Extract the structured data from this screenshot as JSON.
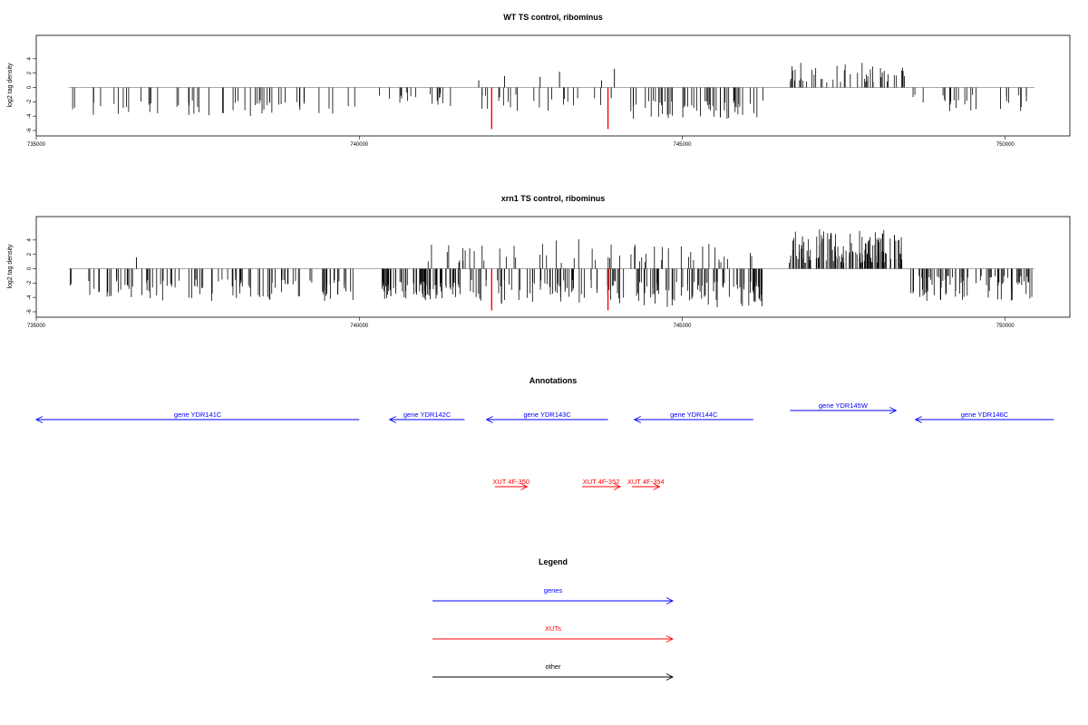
{
  "chart_data": [
    {
      "type": "bar",
      "title": "WT TS control, ribominus",
      "xlabel": "",
      "ylabel": "log2 tag density",
      "xlim": [
        735000,
        751000
      ],
      "ylim": [
        -6,
        6
      ],
      "x_ticks": [
        "735000",
        "740000",
        "745000",
        "750000"
      ],
      "y_ticks": [
        "-6",
        "-4",
        "-2",
        "0",
        "2",
        "4"
      ],
      "baseline": 0,
      "bar_color": "#000000",
      "highlight_color": "#ff0000",
      "segments": [
        {
          "from": 735500,
          "to": 739950,
          "sign": -1,
          "density": 55,
          "min": 1.8,
          "max": 4.0
        },
        {
          "from": 740300,
          "to": 741700,
          "sign": -1,
          "density": 18,
          "min": 0.7,
          "max": 2.6
        },
        {
          "from": 741700,
          "to": 743800,
          "sign": -1,
          "density": 22,
          "min": 1.0,
          "max": 3.3
        },
        {
          "from": 744150,
          "to": 746300,
          "sign": -1,
          "density": 55,
          "min": 1.8,
          "max": 4.4
        },
        {
          "from": 746650,
          "to": 748450,
          "sign": 1,
          "density": 45,
          "min": 0.7,
          "max": 3.5
        },
        {
          "from": 748450,
          "to": 750400,
          "sign": -1,
          "density": 26,
          "min": 1.0,
          "max": 3.4
        }
      ],
      "extra_bars": [
        {
          "x": 741850,
          "y": 1.0
        },
        {
          "x": 742250,
          "y": 1.6
        },
        {
          "x": 742800,
          "y": 1.5
        },
        {
          "x": 743100,
          "y": 2.2
        },
        {
          "x": 743750,
          "y": 1.0
        },
        {
          "x": 743950,
          "y": 2.6
        },
        {
          "x": 742050,
          "y": -1.2
        },
        {
          "x": 743900,
          "y": -1.5
        }
      ],
      "highlight_bars": [
        {
          "x": 742050,
          "y": -5.8
        },
        {
          "x": 743850,
          "y": -5.8
        }
      ]
    },
    {
      "type": "bar",
      "title": "xrn1 TS control, ribominus",
      "xlabel": "",
      "ylabel": "log2 tag density",
      "xlim": [
        735000,
        751000
      ],
      "ylim": [
        -6,
        6
      ],
      "x_ticks": [
        "735000",
        "740000",
        "745000",
        "750000"
      ],
      "y_ticks": [
        "-6",
        "-4",
        "-2",
        "0",
        "2",
        "4"
      ],
      "baseline": 0,
      "bar_color": "#000000",
      "highlight_color": "#ff0000",
      "segments": [
        {
          "from": 735500,
          "to": 739950,
          "sign": -1,
          "density": 110,
          "min": 1.5,
          "max": 4.5
        },
        {
          "from": 740350,
          "to": 741600,
          "sign": -1,
          "density": 80,
          "min": 1.8,
          "max": 4.5
        },
        {
          "from": 741000,
          "to": 744100,
          "sign": 1,
          "density": 30,
          "min": 0.8,
          "max": 4.3
        },
        {
          "from": 741700,
          "to": 744100,
          "sign": -1,
          "density": 70,
          "min": 1.5,
          "max": 5.0
        },
        {
          "from": 744200,
          "to": 746250,
          "sign": 1,
          "density": 25,
          "min": 0.8,
          "max": 3.6
        },
        {
          "from": 744250,
          "to": 746300,
          "sign": -1,
          "density": 85,
          "min": 1.8,
          "max": 5.5
        },
        {
          "from": 746650,
          "to": 748400,
          "sign": 1,
          "density": 130,
          "min": 0.8,
          "max": 5.5
        },
        {
          "from": 748450,
          "to": 750450,
          "sign": -1,
          "density": 80,
          "min": 1.0,
          "max": 4.5
        }
      ],
      "extra_bars": [
        {
          "x": 736550,
          "y": 1.6
        }
      ],
      "highlight_bars": [
        {
          "x": 742050,
          "y": -5.8
        },
        {
          "x": 743850,
          "y": -5.8
        }
      ]
    }
  ],
  "annotations": {
    "title": "Annotations",
    "genes_color": "#0000ff",
    "xuts_color": "#ff0000",
    "genes": [
      {
        "label": "gene YDR141C",
        "from": 740000,
        "to": 735000,
        "row": 1
      },
      {
        "label": "gene YDR142C",
        "from": 741630,
        "to": 740470,
        "row": 1
      },
      {
        "label": "gene YDR143C",
        "from": 743850,
        "to": 741970,
        "row": 1
      },
      {
        "label": "gene YDR144C",
        "from": 746100,
        "to": 744260,
        "row": 1
      },
      {
        "label": "gene YDR145W",
        "from": 746670,
        "to": 748310,
        "row": 0
      },
      {
        "label": "gene YDR146C",
        "from": 750750,
        "to": 748610,
        "row": 1
      }
    ],
    "xuts": [
      {
        "label": "XUT 4F-350",
        "from": 742100,
        "to": 742600
      },
      {
        "label": "XUT 4F-352",
        "from": 743450,
        "to": 744040
      },
      {
        "label": "XUT 4F-354",
        "from": 744220,
        "to": 744650
      }
    ]
  },
  "legend": {
    "title": "Legend",
    "items": [
      {
        "label": "genes",
        "color": "#0000ff"
      },
      {
        "label": "XUTs",
        "color": "#ff0000"
      },
      {
        "label": "other",
        "color": "#000000"
      }
    ]
  }
}
